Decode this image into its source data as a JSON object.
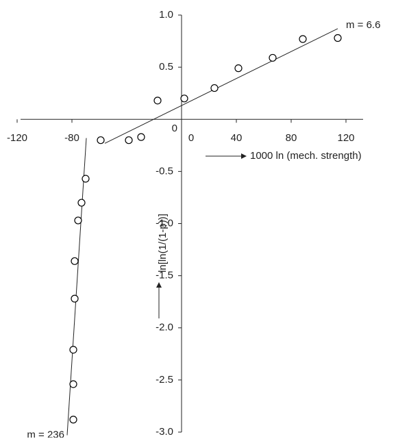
{
  "chart_data": {
    "type": "scatter",
    "x_label": "1000 ln (mech. strength)",
    "y_label": "ln[ln(1/(1-p))]",
    "xlim": [
      -125,
      130
    ],
    "ylim": [
      -3,
      1
    ],
    "xticks": [
      -120,
      -80,
      0,
      40,
      80,
      120
    ],
    "yticks": [
      {
        "value": 1,
        "label": "1.0"
      },
      0.5,
      -0.5,
      {
        "value": -1,
        "label": "-1.0"
      },
      -1.5,
      {
        "value": -2,
        "label": "-2.0"
      },
      -2.5,
      {
        "value": -3,
        "label": "-3.0"
      }
    ],
    "origin_label": "0",
    "series": [
      {
        "color": "#000000",
        "x": [
          -59,
          -38.5,
          -29.5,
          -17.5,
          2,
          24,
          41.5,
          66.5,
          88.5,
          114,
          -70,
          -73,
          -75.5,
          -78,
          -78,
          -79,
          -79,
          -79
        ],
        "values": [
          -0.2,
          -0.2,
          -0.17,
          0.18,
          0.2,
          0.3,
          0.49,
          0.59,
          0.77,
          0.78,
          -0.57,
          -0.8,
          -0.97,
          -1.36,
          -1.72,
          -2.21,
          -2.54,
          -2.88
        ]
      }
    ],
    "fits": [
      {
        "label": "m = 6.6",
        "x": [
          -56,
          114
        ],
        "y": [
          -0.23,
          0.87
        ]
      },
      {
        "label": "m = 236",
        "x": [
          -69.5,
          -83.5
        ],
        "y": [
          -0.18,
          -3.03
        ]
      }
    ]
  }
}
